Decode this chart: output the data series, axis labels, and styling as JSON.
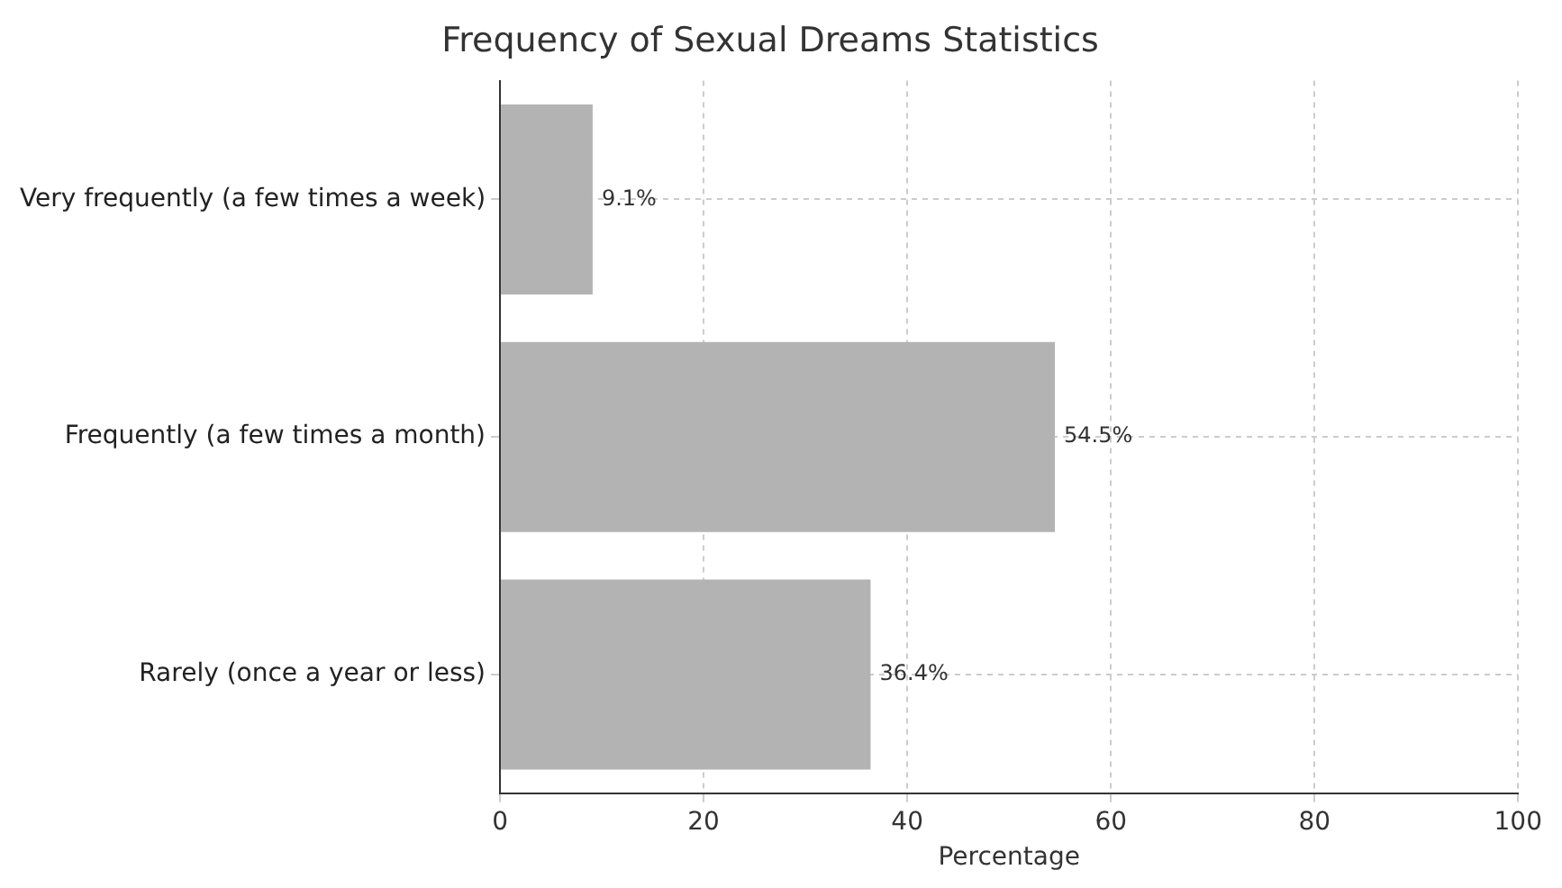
{
  "chart_data": {
    "type": "bar",
    "orientation": "horizontal",
    "title": "Frequency of Sexual Dreams Statistics",
    "xlabel": "Percentage",
    "categories": [
      "Very frequently (a few times a week)",
      "Frequently (a few times a month)",
      "Rarely (once a year or less)"
    ],
    "values": [
      9.1,
      54.5,
      36.4
    ],
    "value_labels": [
      "9.1%",
      "54.5%",
      "36.4%"
    ],
    "color": "#b3b3b3",
    "xlim": [
      0,
      100
    ],
    "xticks": [
      0,
      20,
      40,
      60,
      80,
      100
    ],
    "grid": true,
    "legend": false
  }
}
